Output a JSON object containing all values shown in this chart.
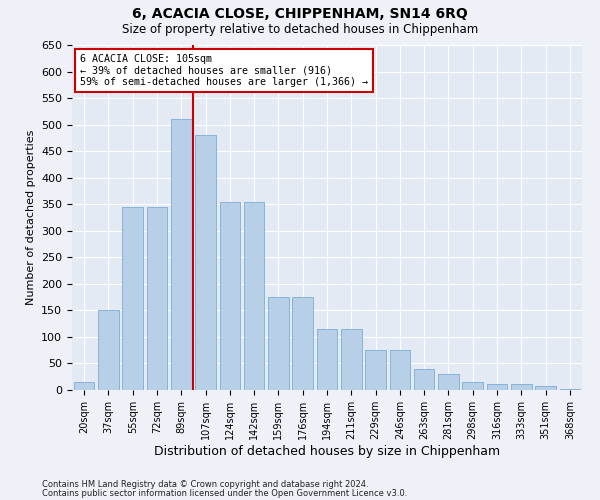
{
  "title": "6, ACACIA CLOSE, CHIPPENHAM, SN14 6RQ",
  "subtitle": "Size of property relative to detached houses in Chippenham",
  "xlabel": "Distribution of detached houses by size in Chippenham",
  "ylabel": "Number of detached properties",
  "categories": [
    "20sqm",
    "37sqm",
    "55sqm",
    "72sqm",
    "89sqm",
    "107sqm",
    "124sqm",
    "142sqm",
    "159sqm",
    "176sqm",
    "194sqm",
    "211sqm",
    "229sqm",
    "246sqm",
    "263sqm",
    "281sqm",
    "298sqm",
    "316sqm",
    "333sqm",
    "351sqm",
    "368sqm"
  ],
  "values": [
    15,
    150,
    345,
    345,
    510,
    480,
    355,
    355,
    175,
    175,
    115,
    115,
    75,
    75,
    40,
    30,
    15,
    12,
    12,
    7,
    2
  ],
  "bar_color": "#b8cfe8",
  "bar_edge_color": "#7aadd4",
  "property_line_label": "6 ACACIA CLOSE: 105sqm",
  "annotation_line1": "← 39% of detached houses are smaller (916)",
  "annotation_line2": "59% of semi-detached houses are larger (1,366) →",
  "annotation_box_color": "#ffffff",
  "annotation_box_edge_color": "#cc0000",
  "vline_color": "#cc0000",
  "vline_x_index": 4.5,
  "ylim": [
    0,
    650
  ],
  "yticks": [
    0,
    50,
    100,
    150,
    200,
    250,
    300,
    350,
    400,
    450,
    500,
    550,
    600,
    650
  ],
  "footer1": "Contains HM Land Registry data © Crown copyright and database right 2024.",
  "footer2": "Contains public sector information licensed under the Open Government Licence v3.0.",
  "background_color": "#eef2f8",
  "plot_background_color": "#e4eaf4"
}
